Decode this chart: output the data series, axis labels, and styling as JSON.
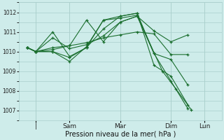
{
  "background_color": "#ceecea",
  "grid_color": "#aacfcc",
  "line_color": "#1a6e2e",
  "xlabel": "Pression niveau de la mer( hPa )",
  "ylim": [
    1006.5,
    1012.5
  ],
  "yticks": [
    1007,
    1008,
    1009,
    1010,
    1011,
    1012
  ],
  "xlim": [
    -0.5,
    11.5
  ],
  "xtick_positions": [
    0.5,
    2.5,
    5.5,
    8.5,
    10.5
  ],
  "xtick_labels": [
    "|",
    "Sam",
    "Mar",
    "Dim",
    "Lun"
  ],
  "vlines": [
    0.5,
    2.5,
    5.5,
    8.5,
    10.5
  ],
  "lines": [
    [
      0,
      1010.2,
      0.5,
      1010.0,
      1.5,
      1010.7,
      2.5,
      1010.15,
      3.5,
      1010.35,
      4.5,
      1010.8,
      5.5,
      1011.5,
      6.5,
      1011.8,
      7.5,
      1011.05,
      8.5,
      1010.5,
      9.5,
      1010.85
    ],
    [
      0,
      1010.2,
      0.5,
      1010.0,
      1.5,
      1011.0,
      2.5,
      1009.75,
      3.5,
      1010.2,
      4.5,
      1011.15,
      5.5,
      1011.8,
      6.5,
      1011.95,
      7.5,
      1009.3,
      8.5,
      1008.75,
      9.5,
      1007.3
    ],
    [
      0,
      1010.2,
      0.5,
      1010.0,
      1.5,
      1010.1,
      2.5,
      1010.3,
      3.5,
      1010.45,
      4.5,
      1010.7,
      5.5,
      1010.85,
      6.5,
      1011.0,
      7.5,
      1010.9,
      8.5,
      1009.85,
      9.5,
      1009.85
    ],
    [
      0,
      1010.2,
      0.5,
      1010.0,
      1.5,
      1010.0,
      2.5,
      1009.7,
      3.5,
      1010.2,
      4.5,
      1011.6,
      5.5,
      1011.8,
      6.5,
      1011.95,
      7.5,
      1009.9,
      8.5,
      1009.6,
      9.5,
      1008.3
    ],
    [
      0,
      1010.2,
      0.5,
      1010.0,
      1.5,
      1010.2,
      2.5,
      1010.3,
      3.5,
      1011.6,
      4.5,
      1010.5,
      5.5,
      1011.5,
      6.5,
      1011.8,
      7.5,
      1009.9,
      8.5,
      1008.5,
      9.5,
      1007.1
    ],
    [
      0,
      1010.2,
      0.5,
      1010.0,
      1.5,
      1010.0,
      2.5,
      1009.5,
      3.5,
      1010.25,
      4.5,
      1011.6,
      5.5,
      1011.7,
      6.5,
      1011.85,
      8.0,
      1009.0,
      8.8,
      1008.1,
      9.7,
      1007.05
    ]
  ]
}
